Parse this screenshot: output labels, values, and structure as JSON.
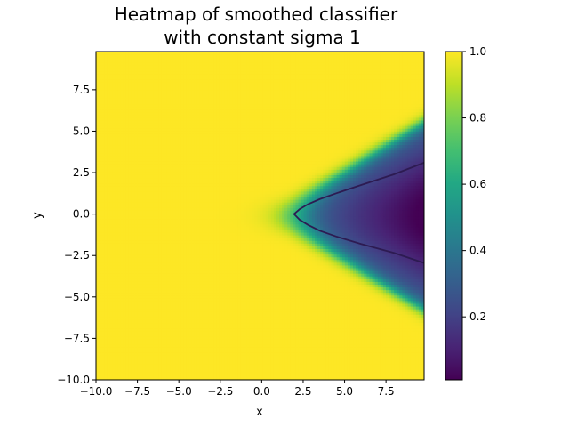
{
  "chart_data": {
    "type": "heatmap",
    "title_lines": [
      "Heatmap of smoothed classifier",
      "with constant sigma 1"
    ],
    "xlabel": "x",
    "ylabel": "y",
    "xlim": [
      -10,
      9.8
    ],
    "ylim": [
      -10,
      9.8
    ],
    "x_ticks": [
      -10.0,
      -7.5,
      -5.0,
      -2.5,
      0.0,
      2.5,
      5.0,
      7.5
    ],
    "x_tick_labels": [
      "−10.0",
      "−7.5",
      "−5.0",
      "−2.5",
      "0.0",
      "2.5",
      "5.0",
      "7.5"
    ],
    "y_ticks": [
      -10.0,
      -7.5,
      -5.0,
      -2.5,
      0.0,
      2.5,
      5.0,
      7.5
    ],
    "y_tick_labels": [
      "−10.0",
      "−7.5",
      "−5.0",
      "−2.5",
      "0.0",
      "2.5",
      "5.0",
      "7.5"
    ],
    "colormap": "viridis",
    "colorbar": {
      "range": [
        0.01,
        1.0
      ],
      "ticks": [
        0.2,
        0.4,
        0.6,
        0.8,
        1.0
      ],
      "tick_labels": [
        "0.2",
        "0.4",
        "0.6",
        "0.8",
        "1.0"
      ]
    },
    "field_description": "Value near 1.0 everywhere except a wedge opening to the right (y between about ±3 at x=9.8), dropping to about 0.01 near (9.5, -0.5)",
    "contour": {
      "level": 0.5,
      "color": "#2d1b52",
      "points": [
        [
          9.8,
          3.1
        ],
        [
          8.0,
          2.4
        ],
        [
          6.0,
          1.75
        ],
        [
          4.5,
          1.25
        ],
        [
          3.5,
          0.9
        ],
        [
          2.8,
          0.6
        ],
        [
          2.3,
          0.3
        ],
        [
          1.95,
          0.0
        ],
        [
          2.3,
          -0.35
        ],
        [
          2.8,
          -0.65
        ],
        [
          3.5,
          -1.0
        ],
        [
          4.5,
          -1.35
        ],
        [
          6.0,
          -1.8
        ],
        [
          8.0,
          -2.35
        ],
        [
          9.8,
          -2.95
        ]
      ]
    }
  }
}
